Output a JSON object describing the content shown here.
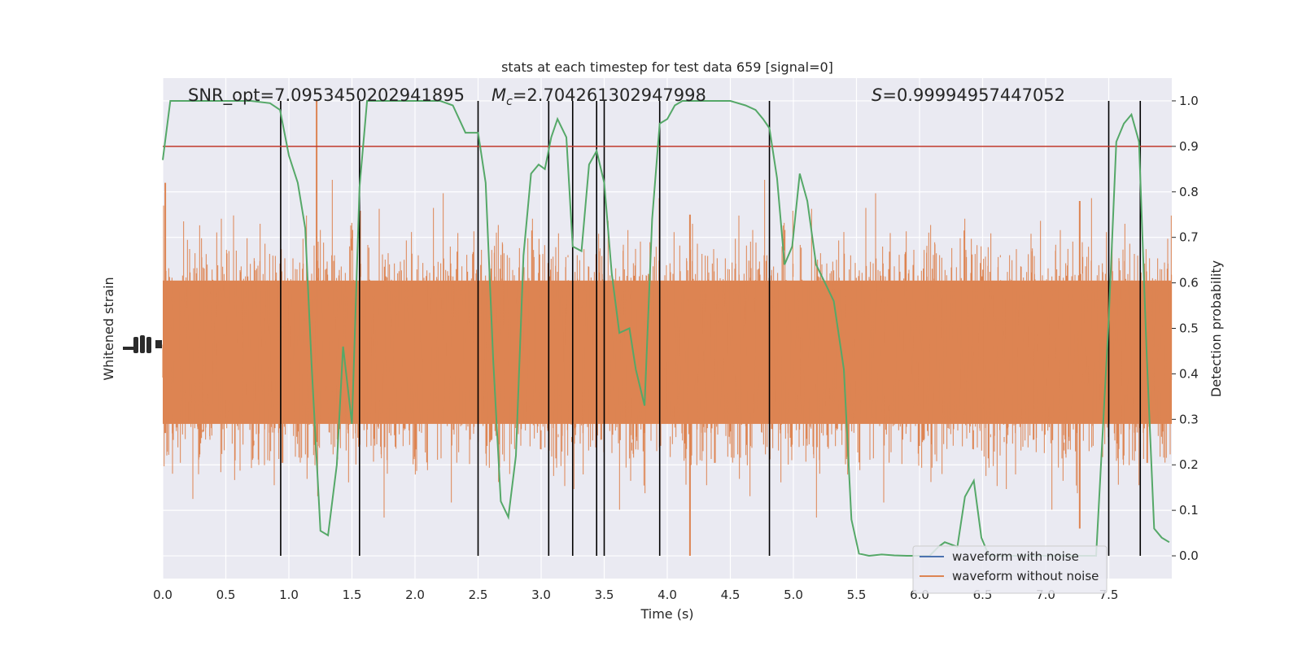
{
  "chart_data": {
    "type": "line",
    "title": "stats at each timestep for test data 659 [signal=0]",
    "xlabel": "Time (s)",
    "ylabel_left": "Whitened strain",
    "ylabel_right": "Detection probability",
    "xlim": [
      0.0,
      8.0
    ],
    "ylim_right": [
      -0.05,
      1.05
    ],
    "x_ticks": [
      "0.0",
      "0.5",
      "1.0",
      "1.5",
      "2.0",
      "2.5",
      "3.0",
      "3.5",
      "4.0",
      "4.5",
      "5.0",
      "5.5",
      "6.0",
      "6.5",
      "7.0",
      "7.5"
    ],
    "y_ticks_right": [
      "0.0",
      "0.1",
      "0.2",
      "0.3",
      "0.4",
      "0.5",
      "0.6",
      "0.7",
      "0.8",
      "0.9",
      "1.0"
    ],
    "grid": true,
    "annotations": {
      "snr": "SNR_opt=7.0953450202941895",
      "mc_symbol": "M",
      "mc_sub": "c",
      "mc_value": "=2.704261302947998",
      "s_symbol": "S",
      "s_value": "=0.99994957447052"
    },
    "threshold": {
      "value": 0.9,
      "color": "#c0392b"
    },
    "series": [
      {
        "name": "waveform with noise",
        "color": "#4c72b0",
        "style": "dense noise, hidden beneath the orange trace"
      },
      {
        "name": "waveform without noise",
        "color": "#dd8452",
        "style": "dense noise band, core roughly 0.30–0.60 on the probability scale, spikes up to about 1.0 and down to about 0.0"
      },
      {
        "name": "",
        "color": "#55a868",
        "x": [
          0.0,
          0.06,
          0.15,
          0.3,
          0.5,
          0.7,
          0.85,
          0.93,
          1.0,
          1.07,
          1.13,
          1.18,
          1.25,
          1.31,
          1.38,
          1.43,
          1.5,
          1.56,
          1.62,
          1.7,
          1.8,
          2.0,
          2.2,
          2.3,
          2.4,
          2.5,
          2.56,
          2.62,
          2.68,
          2.74,
          2.8,
          2.86,
          2.92,
          2.98,
          3.03,
          3.08,
          3.13,
          3.2,
          3.25,
          3.32,
          3.38,
          3.44,
          3.5,
          3.56,
          3.62,
          3.7,
          3.75,
          3.82,
          3.88,
          3.94,
          4.0,
          4.06,
          4.12,
          4.2,
          4.35,
          4.5,
          4.62,
          4.7,
          4.76,
          4.81,
          4.87,
          4.93,
          4.99,
          5.05,
          5.11,
          5.18,
          5.25,
          5.32,
          5.4,
          5.46,
          5.52,
          5.6,
          5.7,
          5.8,
          5.9,
          6.0,
          6.08,
          6.15,
          6.2,
          6.25,
          6.3,
          6.36,
          6.43,
          6.49,
          6.55,
          6.6,
          6.7,
          6.8,
          6.9,
          7.0,
          7.1,
          7.2,
          7.3,
          7.4,
          7.5,
          7.56,
          7.62,
          7.68,
          7.74,
          7.8,
          7.86,
          7.92,
          7.98
        ],
        "y": [
          0.87,
          1.0,
          1.0,
          1.0,
          1.0,
          1.0,
          0.995,
          0.98,
          0.88,
          0.82,
          0.72,
          0.42,
          0.055,
          0.045,
          0.2,
          0.46,
          0.29,
          0.81,
          1.0,
          1.0,
          1.0,
          1.0,
          1.0,
          0.99,
          0.93,
          0.93,
          0.82,
          0.43,
          0.12,
          0.085,
          0.22,
          0.66,
          0.84,
          0.86,
          0.85,
          0.92,
          0.96,
          0.92,
          0.68,
          0.67,
          0.86,
          0.89,
          0.82,
          0.62,
          0.49,
          0.5,
          0.41,
          0.33,
          0.74,
          0.95,
          0.96,
          0.99,
          1.0,
          1.0,
          1.0,
          1.0,
          0.99,
          0.98,
          0.96,
          0.94,
          0.83,
          0.64,
          0.68,
          0.84,
          0.78,
          0.64,
          0.6,
          0.56,
          0.41,
          0.08,
          0.005,
          0.0,
          0.003,
          0.001,
          0.0,
          0.0,
          0.0,
          0.02,
          0.03,
          0.025,
          0.02,
          0.13,
          0.165,
          0.04,
          0.0,
          0.0,
          0.0,
          0.0,
          0.0,
          0.0,
          0.0,
          0.0,
          0.0,
          0.0,
          0.52,
          0.91,
          0.95,
          0.97,
          0.91,
          0.45,
          0.06,
          0.04,
          0.03
        ]
      }
    ],
    "event_markers_x": [
      0.935,
      1.56,
      2.5,
      3.06,
      3.25,
      3.44,
      3.5,
      3.94,
      4.81,
      7.5,
      7.75
    ],
    "legend": {
      "placement": "lower-right"
    }
  }
}
